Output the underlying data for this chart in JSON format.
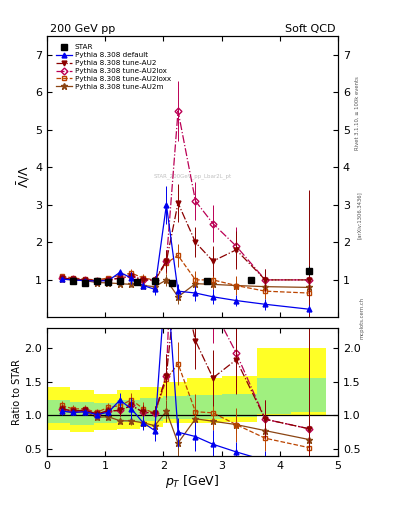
{
  "title_left": "200 GeV pp",
  "title_right": "Soft QCD",
  "ylabel_main": "$\\bar{\\Lambda}/\\Lambda$",
  "ylabel_ratio": "Ratio to STAR",
  "xlabel": "$p_T$ [GeV]",
  "right_label1": "Rivet 3.1.10, ≥ 100k events",
  "right_label2": "[arXiv:1306.3436]",
  "right_label3": "mcplots.cern.ch",
  "star_x": [
    0.45,
    0.65,
    0.85,
    1.05,
    1.25,
    1.55,
    1.85,
    2.15,
    2.75,
    3.5,
    4.5
  ],
  "star_y": [
    0.96,
    0.93,
    0.96,
    0.94,
    0.98,
    0.95,
    0.97,
    0.93,
    0.96,
    1.0,
    1.25
  ],
  "star_yerr": [
    0.05,
    0.04,
    0.04,
    0.04,
    0.04,
    0.04,
    0.04,
    0.05,
    0.06,
    0.08,
    0.12
  ],
  "pythia_default_x": [
    0.25,
    0.45,
    0.65,
    0.85,
    1.05,
    1.25,
    1.45,
    1.65,
    1.85,
    2.05,
    2.25,
    2.55,
    2.85,
    3.25,
    3.75,
    4.5
  ],
  "pythia_default_y": [
    1.02,
    1.0,
    0.98,
    0.97,
    0.98,
    1.2,
    1.05,
    0.85,
    0.75,
    3.0,
    0.7,
    0.65,
    0.55,
    0.45,
    0.35,
    0.22
  ],
  "pythia_default_yerr": [
    0.05,
    0.04,
    0.04,
    0.04,
    0.05,
    0.1,
    0.15,
    0.1,
    0.15,
    0.5,
    0.2,
    0.2,
    0.2,
    0.15,
    0.15,
    0.1
  ],
  "pythia_AU2_x": [
    0.25,
    0.45,
    0.65,
    0.85,
    1.05,
    1.25,
    1.45,
    1.65,
    1.85,
    2.05,
    2.25,
    2.55,
    2.85,
    3.25,
    3.75,
    4.5
  ],
  "pythia_AU2_y": [
    1.05,
    1.02,
    1.0,
    0.98,
    1.0,
    1.05,
    1.1,
    1.0,
    1.0,
    1.5,
    3.05,
    2.0,
    1.5,
    1.8,
    1.0,
    1.0
  ],
  "pythia_AU2_yerr": [
    0.06,
    0.05,
    0.05,
    0.05,
    0.05,
    0.08,
    0.1,
    0.1,
    0.1,
    0.3,
    0.5,
    0.4,
    0.4,
    0.5,
    0.3,
    2.4
  ],
  "pythia_AU2lox_x": [
    0.25,
    0.45,
    0.65,
    0.85,
    1.05,
    1.25,
    1.45,
    1.65,
    1.85,
    2.05,
    2.25,
    2.55,
    2.85,
    3.25,
    3.75,
    4.5
  ],
  "pythia_AU2lox_y": [
    1.05,
    1.02,
    1.0,
    0.98,
    1.0,
    1.05,
    1.1,
    1.0,
    1.0,
    1.5,
    5.5,
    3.1,
    2.5,
    1.9,
    1.0,
    1.0
  ],
  "pythia_AU2lox_yerr": [
    0.06,
    0.05,
    0.05,
    0.05,
    0.05,
    0.08,
    0.1,
    0.1,
    0.1,
    0.3,
    0.8,
    0.5,
    0.5,
    0.5,
    0.3,
    0.3
  ],
  "pythia_AU2loxx_x": [
    0.25,
    0.45,
    0.65,
    0.85,
    1.05,
    1.25,
    1.45,
    1.65,
    1.85,
    2.05,
    2.25,
    2.55,
    2.85,
    3.25,
    3.75,
    4.5
  ],
  "pythia_AU2loxx_y": [
    1.1,
    1.05,
    1.02,
    1.0,
    1.05,
    1.12,
    1.18,
    1.05,
    1.0,
    1.45,
    1.65,
    1.0,
    1.0,
    0.85,
    0.7,
    0.65
  ],
  "pythia_AU2loxx_yerr": [
    0.07,
    0.06,
    0.05,
    0.05,
    0.06,
    0.09,
    0.1,
    0.1,
    0.1,
    0.3,
    0.3,
    0.25,
    0.25,
    0.25,
    0.2,
    0.2
  ],
  "pythia_AU2m_x": [
    0.25,
    0.45,
    0.65,
    0.85,
    1.05,
    1.25,
    1.45,
    1.65,
    1.85,
    2.05,
    2.25,
    2.55,
    2.85,
    3.25,
    3.75,
    4.5
  ],
  "pythia_AU2m_y": [
    1.02,
    1.0,
    0.98,
    0.93,
    0.92,
    0.9,
    0.88,
    0.85,
    0.82,
    1.0,
    0.55,
    0.9,
    0.88,
    0.85,
    0.82,
    0.8
  ],
  "pythia_AU2m_yerr": [
    0.05,
    0.04,
    0.04,
    0.04,
    0.04,
    0.05,
    0.06,
    0.07,
    0.08,
    0.15,
    0.2,
    0.12,
    0.12,
    0.12,
    0.1,
    0.1
  ],
  "band_yellow_edges": [
    0.0,
    0.4,
    0.8,
    1.2,
    1.6,
    2.0,
    2.4,
    3.0,
    3.6,
    4.2,
    4.8
  ],
  "band_yellow_low": [
    0.78,
    0.75,
    0.78,
    0.8,
    0.82,
    0.88,
    0.88,
    0.9,
    1.0,
    1.0
  ],
  "band_yellow_high": [
    1.42,
    1.38,
    1.32,
    1.38,
    1.42,
    1.5,
    1.55,
    1.58,
    2.0,
    2.0
  ],
  "band_green_edges": [
    0.0,
    0.4,
    0.8,
    1.2,
    1.6,
    2.0,
    2.4,
    3.0,
    3.6,
    4.2,
    4.8
  ],
  "band_green_low": [
    0.88,
    0.85,
    0.88,
    0.9,
    0.92,
    0.95,
    0.95,
    0.98,
    1.02,
    1.05
  ],
  "band_green_high": [
    1.22,
    1.2,
    1.18,
    1.22,
    1.25,
    1.28,
    1.3,
    1.32,
    1.55,
    1.55
  ],
  "xlim": [
    0,
    5.0
  ],
  "ylim_main": [
    0.0,
    7.5
  ],
  "ylim_ratio": [
    0.4,
    2.3
  ],
  "color_default": "#0000EE",
  "color_AU2": "#8B0000",
  "color_AU2lox": "#BB0055",
  "color_AU2loxx": "#BB4400",
  "color_AU2m": "#8B4513",
  "color_star": "#000000",
  "watermark": "STAR_200GeV_pp_Lbar2L_pt"
}
